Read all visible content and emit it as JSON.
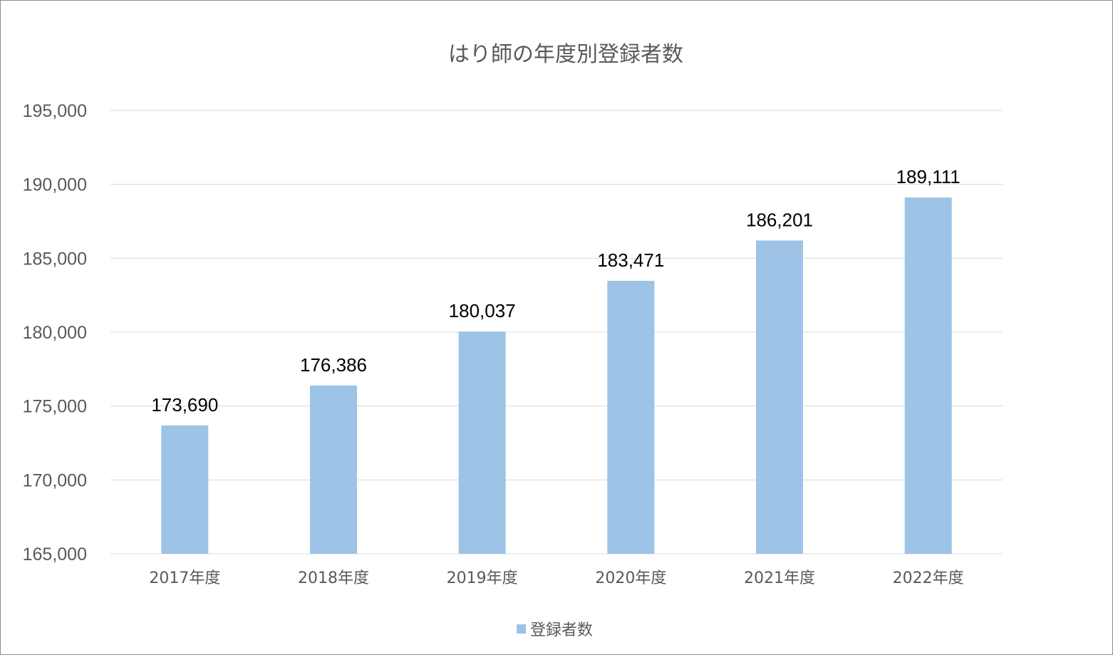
{
  "chart_data": {
    "type": "bar",
    "title": "はり師の年度別登録者数",
    "categories": [
      "2017年度",
      "2018年度",
      "2019年度",
      "2020年度",
      "2021年度",
      "2022年度"
    ],
    "series": [
      {
        "name": "登録者数",
        "values": [
          173690,
          176386,
          180037,
          183471,
          186201,
          189111
        ],
        "labels": [
          "173,690",
          "176,386",
          "180,037",
          "183,471",
          "186,201",
          "189,111"
        ],
        "color": "#9dc3e6"
      }
    ],
    "ylim": [
      165000,
      195000
    ],
    "yticks": [
      "165,000",
      "170,000",
      "175,000",
      "180,000",
      "185,000",
      "190,000",
      "195,000"
    ],
    "grid": true,
    "legend_position": "bottom"
  }
}
